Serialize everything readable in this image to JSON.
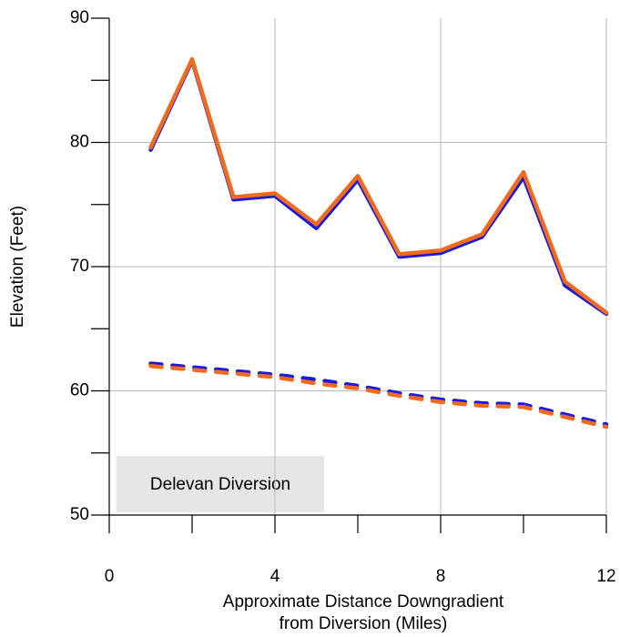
{
  "chart_data": {
    "type": "line",
    "x": [
      1,
      2,
      3,
      4,
      5,
      6,
      7,
      8,
      9,
      10,
      11,
      12
    ],
    "series": [
      {
        "color": "#1a1adb",
        "style": "solid",
        "values": [
          79.4,
          86.6,
          75.4,
          75.7,
          73.1,
          77.0,
          70.8,
          71.1,
          72.4,
          77.2,
          68.5,
          66.2
        ]
      },
      {
        "color": "#f26b1d",
        "style": "solid",
        "values": [
          79.6,
          86.7,
          75.6,
          75.9,
          73.4,
          77.3,
          71.0,
          71.3,
          72.6,
          77.6,
          68.8,
          66.3
        ]
      },
      {
        "color": "#1a1adb",
        "style": "dashed",
        "values": [
          62.2,
          61.9,
          61.6,
          61.3,
          60.9,
          60.4,
          59.8,
          59.3,
          59.0,
          58.9,
          58.1,
          57.3
        ]
      },
      {
        "color": "#f26b1d",
        "style": "dashed",
        "values": [
          62.0,
          61.7,
          61.4,
          61.1,
          60.6,
          60.2,
          59.6,
          59.1,
          58.8,
          58.7,
          57.9,
          57.1
        ]
      }
    ],
    "xlim": [
      0,
      12
    ],
    "xticks": [
      0,
      4,
      8,
      12
    ],
    "xminor_ticks": [
      2,
      6,
      10
    ],
    "ylim": [
      50,
      90
    ],
    "yticks": [
      50,
      60,
      70,
      80,
      90
    ],
    "yminor_ticks": [
      55,
      65,
      75,
      85
    ],
    "grid": true,
    "x_label": [
      "Approximate Distance Downgradient",
      "from Diversion (Miles)"
    ],
    "y_label": "Elevation (Feet)",
    "annotation": "Delevan Diversion"
  }
}
